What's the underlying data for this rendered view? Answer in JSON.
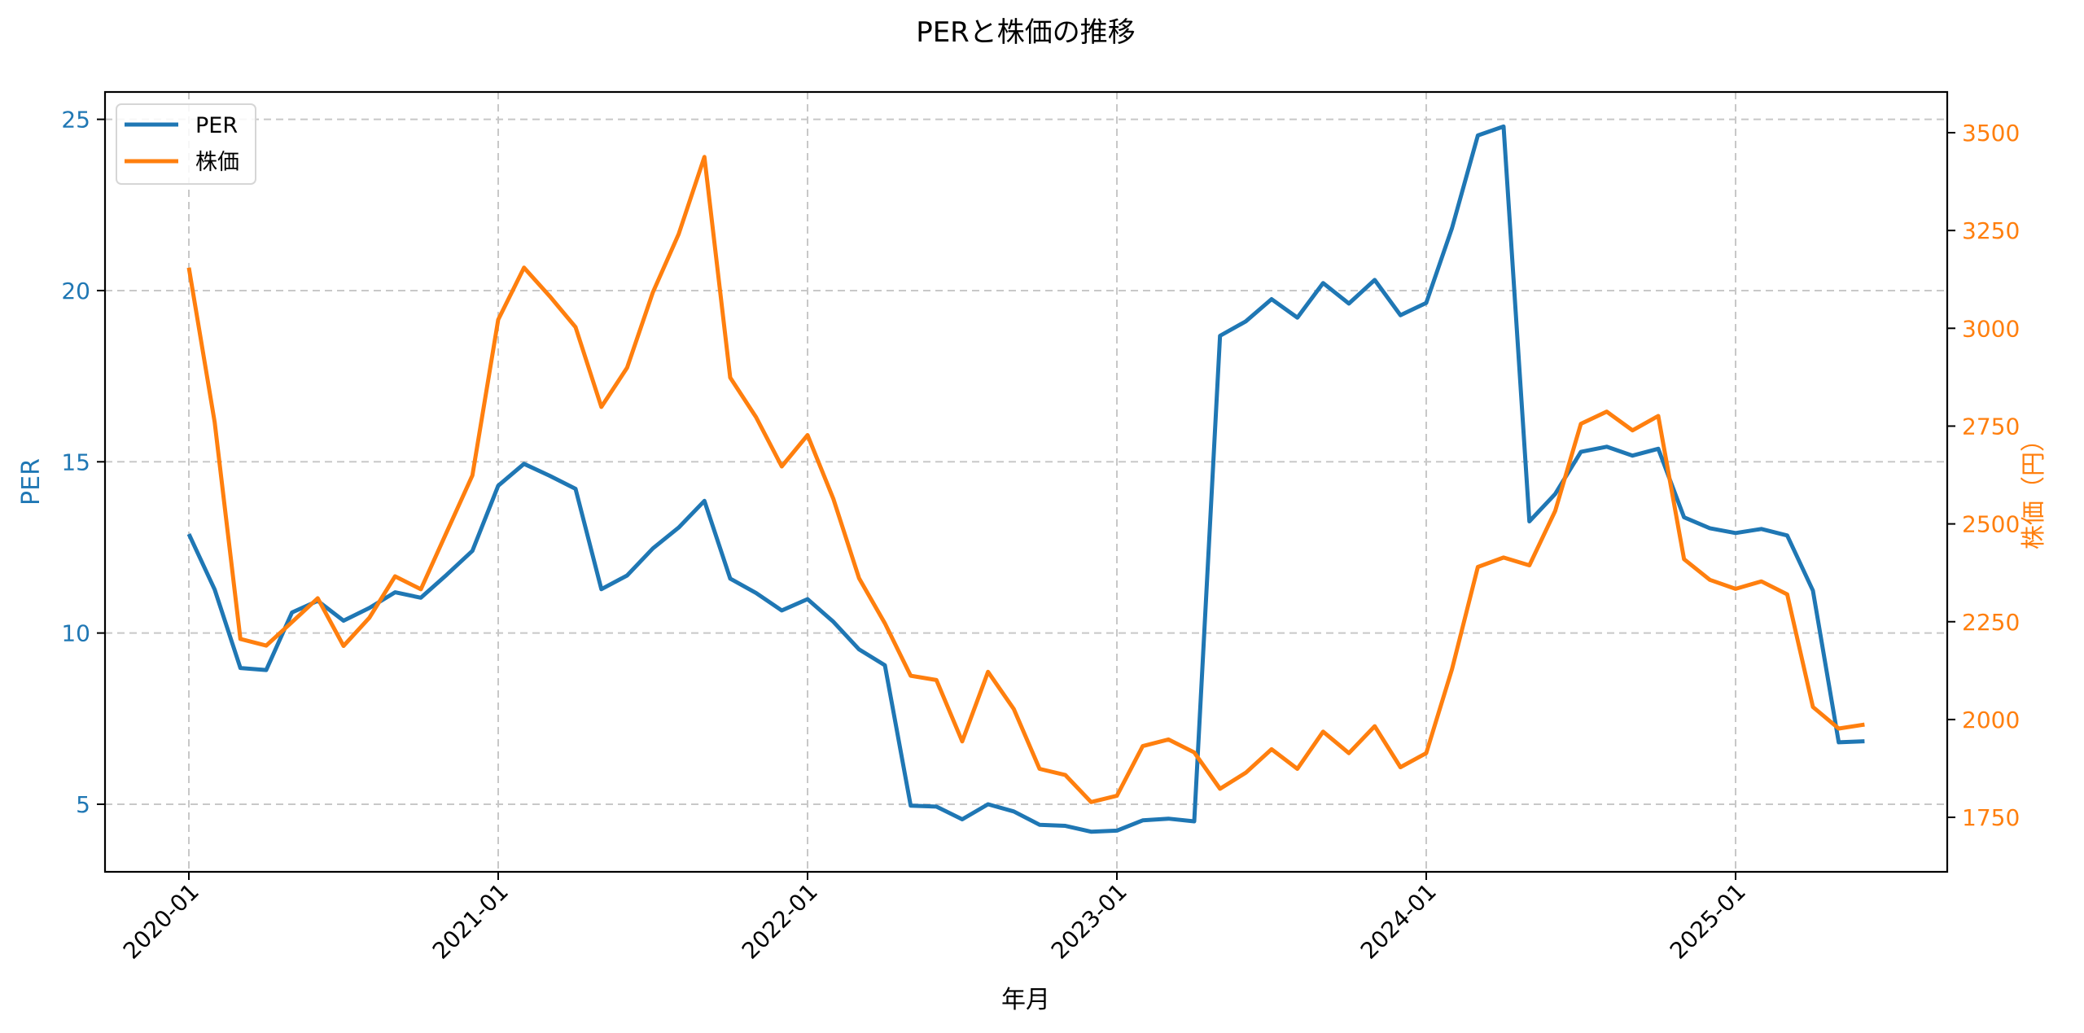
{
  "colors": {
    "per": "#1f77b4",
    "price": "#ff7f0e",
    "grid": "#c8c8c8",
    "text": "#000000"
  },
  "legend": {
    "items": [
      {
        "label": "PER",
        "color": "#1f77b4"
      },
      {
        "label": "株価",
        "color": "#ff7f0e"
      }
    ]
  },
  "chart_data": {
    "type": "line",
    "title": "PERと株価の推移",
    "xlabel": "年月",
    "ylabel": "PER",
    "ylabel_right": "株価（円）",
    "x_tick_labels": [
      "2020-01",
      "2021-01",
      "2022-01",
      "2023-01",
      "2024-01",
      "2025-01"
    ],
    "y_ticks_left": [
      5,
      10,
      15,
      20,
      25
    ],
    "y_ticks_right": [
      1750,
      2000,
      2250,
      2500,
      2750,
      3000,
      3250,
      3500
    ],
    "ylim": [
      3.1,
      25.8
    ],
    "ylim_right": [
      1611,
      3604
    ],
    "grid": true,
    "legend_position": "upper left",
    "x": [
      "2020-01",
      "2020-02",
      "2020-03",
      "2020-04",
      "2020-05",
      "2020-06",
      "2020-07",
      "2020-08",
      "2020-09",
      "2020-10",
      "2020-11",
      "2020-12",
      "2021-01",
      "2021-02",
      "2021-03",
      "2021-04",
      "2021-05",
      "2021-06",
      "2021-07",
      "2021-08",
      "2021-09",
      "2021-10",
      "2021-11",
      "2021-12",
      "2022-01",
      "2022-02",
      "2022-03",
      "2022-04",
      "2022-05",
      "2022-06",
      "2022-07",
      "2022-08",
      "2022-09",
      "2022-10",
      "2022-11",
      "2022-12",
      "2023-01",
      "2023-02",
      "2023-03",
      "2023-04",
      "2023-05",
      "2023-06",
      "2023-07",
      "2023-08",
      "2023-09",
      "2023-10",
      "2023-11",
      "2023-12",
      "2024-01",
      "2024-02",
      "2024-03",
      "2024-04",
      "2024-05",
      "2024-06",
      "2024-07",
      "2024-08",
      "2024-09",
      "2024-10",
      "2024-11",
      "2024-12",
      "2025-01",
      "2025-02",
      "2025-03",
      "2025-04",
      "2025-05",
      "2025-06"
    ],
    "series": [
      {
        "name": "PER",
        "axis": "left",
        "color": "#1f77b4",
        "values": [
          12.89,
          11.27,
          8.98,
          8.92,
          10.6,
          10.94,
          10.36,
          10.73,
          11.19,
          11.03,
          11.7,
          12.4,
          14.3,
          14.94,
          14.59,
          14.21,
          11.28,
          11.68,
          12.47,
          13.08,
          13.86,
          11.59,
          11.17,
          10.66,
          10.99,
          10.33,
          9.52,
          9.06,
          4.96,
          4.93,
          4.56,
          5.0,
          4.79,
          4.4,
          4.37,
          4.2,
          4.23,
          4.53,
          4.58,
          4.5,
          18.68,
          19.1,
          19.75,
          19.21,
          20.22,
          19.62,
          20.31,
          19.28,
          19.64,
          21.83,
          24.53,
          24.79,
          13.26,
          14.06,
          15.29,
          15.44,
          15.18,
          15.38,
          13.38,
          13.06,
          12.92,
          13.04,
          12.85,
          11.24,
          6.81,
          6.84
        ]
      },
      {
        "name": "株価",
        "axis": "right",
        "color": "#ff7f0e",
        "values": [
          3155,
          2760,
          2206,
          2189,
          2249,
          2310,
          2188,
          2260,
          2366,
          2333,
          2479,
          2624,
          3022,
          3155,
          3082,
          3003,
          2799,
          2899,
          3092,
          3241,
          3438,
          2874,
          2773,
          2647,
          2727,
          2564,
          2361,
          2246,
          2112,
          2101,
          1944,
          2122,
          2027,
          1874,
          1858,
          1789,
          1805,
          1932,
          1949,
          1916,
          1823,
          1864,
          1924,
          1874,
          1969,
          1914,
          1983,
          1878,
          1914,
          2129,
          2390,
          2414,
          2394,
          2533,
          2756,
          2787,
          2739,
          2776,
          2410,
          2357,
          2334,
          2353,
          2320,
          2032,
          1977,
          1987
        ]
      }
    ]
  }
}
